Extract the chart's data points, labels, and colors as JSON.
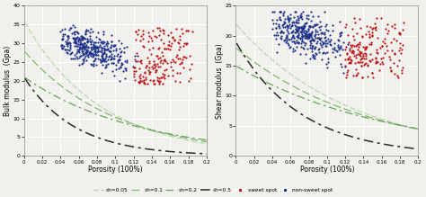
{
  "left_ylabel": "Bulk modulus  (Gpa)",
  "right_ylabel": "Shear modulus  (Gpa)",
  "xlabel": "Porosity (100%)",
  "left_ylim": [
    0,
    40
  ],
  "right_ylim": [
    0,
    25
  ],
  "xlim": [
    0,
    0.2
  ],
  "left_yticks": [
    0,
    5,
    10,
    15,
    20,
    25,
    30,
    35,
    40
  ],
  "right_yticks": [
    0,
    5,
    10,
    15,
    20,
    25
  ],
  "xticks": [
    0,
    0.02,
    0.04,
    0.06,
    0.08,
    0.1,
    0.12,
    0.14,
    0.16,
    0.18,
    0.2
  ],
  "bg_color": "#f2f0ec",
  "grid_color": "white",
  "sweet_color": "#bb1111",
  "nonsweet_color": "#1a2f8a",
  "line_colors": {
    "sh005": "#b8d8b0",
    "sh01": "#80b870",
    "sh02": "#60a855",
    "sh05": "#2a2a2a"
  },
  "marker_size": 2.5,
  "bulk_curve_params": {
    "sh005": {
      "K0": 36,
      "c": 12
    },
    "sh01": {
      "K0": 28,
      "c": 10
    },
    "sh02": {
      "K0": 21,
      "c": 8
    },
    "sh05": {
      "K0": 21,
      "c": 18
    }
  },
  "shear_curve_params": {
    "sh005": {
      "G0": 22,
      "c": 8
    },
    "sh01": {
      "G0": 18,
      "c": 7
    },
    "sh02": {
      "G0": 15,
      "c": 6
    },
    "sh05": {
      "G0": 19,
      "c": 14
    }
  }
}
